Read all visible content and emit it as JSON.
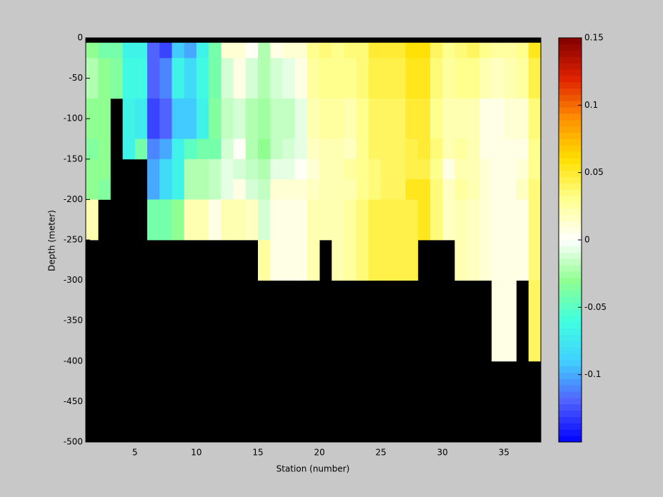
{
  "chart_data": {
    "type": "heatmap",
    "xlabel": "Station (number)",
    "ylabel": "Depth (meter)",
    "x": [
      1,
      2,
      3,
      4,
      5,
      6,
      7,
      8,
      9,
      10,
      11,
      12,
      13,
      14,
      15,
      16,
      17,
      18,
      19,
      20,
      21,
      22,
      23,
      24,
      25,
      26,
      27,
      28,
      29,
      30,
      31,
      32,
      33,
      34,
      35,
      36,
      37,
      38
    ],
    "y": [
      0,
      -6,
      -25,
      -75,
      -125,
      -150,
      -175,
      -200,
      -250,
      -300,
      -400,
      -500
    ],
    "z": [
      [
        null,
        null,
        null,
        null,
        null,
        null,
        null,
        null,
        null,
        null,
        null,
        null,
        null,
        null,
        null,
        null,
        null,
        null,
        null,
        null,
        null,
        null,
        null,
        null,
        null,
        null,
        null,
        null,
        null,
        null,
        null,
        null,
        null,
        null,
        null,
        null,
        null
      ],
      [
        -0.03,
        -0.04,
        -0.04,
        -0.07,
        -0.07,
        -0.12,
        -0.13,
        -0.09,
        -0.1,
        -0.07,
        -0.04,
        0.01,
        0.01,
        0,
        -0.02,
        0.005,
        0.01,
        0.01,
        0.03,
        0.035,
        0.03,
        0.035,
        0.035,
        0.05,
        0.05,
        0.05,
        0.06,
        0.06,
        0.04,
        0.03,
        0.035,
        0.04,
        0.03,
        0.025,
        0.025,
        0.03,
        0.055
      ],
      [
        -0.02,
        -0.03,
        -0.035,
        -0.065,
        -0.065,
        -0.12,
        -0.11,
        -0.07,
        -0.08,
        -0.065,
        -0.04,
        -0.01,
        0.005,
        -0.01,
        -0.02,
        -0.01,
        -0.005,
        0.005,
        0.025,
        0.03,
        0.03,
        0.03,
        0.035,
        0.045,
        0.045,
        0.045,
        0.055,
        0.055,
        0.035,
        0.025,
        0.03,
        0.03,
        0.02,
        0.015,
        0.02,
        0.025,
        0.045
      ],
      [
        -0.03,
        -0.03,
        null,
        -0.07,
        -0.075,
        -0.13,
        -0.12,
        -0.09,
        -0.09,
        -0.07,
        -0.035,
        -0.015,
        -0.01,
        -0.02,
        -0.025,
        -0.015,
        -0.015,
        -0.005,
        0.02,
        0.025,
        0.025,
        0.02,
        0.03,
        0.04,
        0.04,
        0.04,
        0.05,
        0.05,
        0.03,
        0.02,
        0.02,
        0.02,
        0.005,
        0.005,
        0.01,
        0.01,
        0.035
      ],
      [
        -0.035,
        -0.03,
        null,
        -0.07,
        -0.04,
        -0.11,
        -0.1,
        -0.07,
        -0.05,
        -0.04,
        -0.04,
        -0.01,
        0,
        -0.02,
        -0.03,
        -0.015,
        -0.01,
        -0.005,
        0.015,
        0.02,
        0.02,
        0.015,
        0.03,
        0.04,
        0.04,
        0.04,
        0.045,
        0.05,
        0.035,
        0.02,
        0.025,
        0.02,
        0.005,
        0.005,
        0.005,
        0.005,
        0.03
      ],
      [
        -0.03,
        -0.03,
        null,
        null,
        null,
        -0.1,
        -0.08,
        -0.07,
        -0.02,
        -0.02,
        -0.015,
        -0.005,
        -0.01,
        -0.015,
        -0.02,
        -0.005,
        -0.005,
        0,
        0.01,
        0.02,
        0.02,
        0.025,
        0.03,
        0.035,
        0.04,
        0.04,
        0.045,
        0.045,
        0.03,
        0.005,
        0.02,
        0.02,
        0.01,
        0.005,
        0.005,
        0.01,
        0.03
      ],
      [
        -0.03,
        -0.035,
        null,
        null,
        null,
        -0.1,
        -0.08,
        -0.07,
        -0.02,
        -0.02,
        -0.015,
        -0.005,
        0.005,
        -0.01,
        -0.015,
        0.01,
        0.01,
        0.01,
        0.015,
        0.02,
        0.02,
        0.02,
        0.03,
        0.035,
        0.04,
        0.04,
        0.055,
        0.055,
        0.035,
        0.015,
        0.025,
        0.02,
        0.01,
        0.005,
        0.005,
        0.015,
        0.035
      ],
      [
        0.02,
        null,
        null,
        null,
        null,
        -0.04,
        -0.04,
        -0.03,
        0.02,
        0.02,
        0.005,
        0.02,
        0.02,
        0.015,
        -0.01,
        0.005,
        0.005,
        0.005,
        0.02,
        0.02,
        0.02,
        0.025,
        0.035,
        0.045,
        0.045,
        0.045,
        0.045,
        0.055,
        0.035,
        0.015,
        0.02,
        0.015,
        0.01,
        0.005,
        0.005,
        0.005,
        0.035
      ],
      [
        null,
        null,
        null,
        null,
        null,
        null,
        null,
        null,
        null,
        null,
        null,
        null,
        null,
        null,
        0.025,
        0.005,
        0.005,
        0.005,
        0.02,
        null,
        0.02,
        0.025,
        0.035,
        0.045,
        0.045,
        0.045,
        0.045,
        null,
        null,
        null,
        0.02,
        0.015,
        0.01,
        0.005,
        0.005,
        0.005,
        0.035
      ],
      [
        null,
        null,
        null,
        null,
        null,
        null,
        null,
        null,
        null,
        null,
        null,
        null,
        null,
        null,
        null,
        null,
        null,
        null,
        null,
        null,
        null,
        null,
        null,
        null,
        null,
        null,
        null,
        null,
        null,
        null,
        null,
        null,
        null,
        0.005,
        0.005,
        null,
        0.04
      ],
      [
        null,
        null,
        null,
        null,
        null,
        null,
        null,
        null,
        null,
        null,
        null,
        null,
        null,
        null,
        null,
        null,
        null,
        null,
        null,
        null,
        null,
        null,
        null,
        null,
        null,
        null,
        null,
        null,
        null,
        null,
        null,
        null,
        null,
        null,
        null,
        null,
        null
      ]
    ],
    "xlim": [
      1,
      38
    ],
    "ylim": [
      -500,
      0
    ],
    "xticks": [
      5,
      10,
      15,
      20,
      25,
      30,
      35
    ],
    "yticks": [
      0,
      -50,
      -100,
      -150,
      -200,
      -250,
      -300,
      -350,
      -400,
      -450,
      -500
    ],
    "clim": [
      -0.15,
      0.15
    ],
    "cticks": [
      -0.1,
      -0.05,
      0,
      0.05,
      0.1,
      0.15
    ],
    "colormap": [
      "#0000ff",
      "#5060ff",
      "#40d0ff",
      "#40ffe0",
      "#90ff90",
      "#ffffff",
      "#ffff90",
      "#ffe000",
      "#ff9000",
      "#e02000",
      "#800000"
    ],
    "missing_color": "#000000"
  }
}
